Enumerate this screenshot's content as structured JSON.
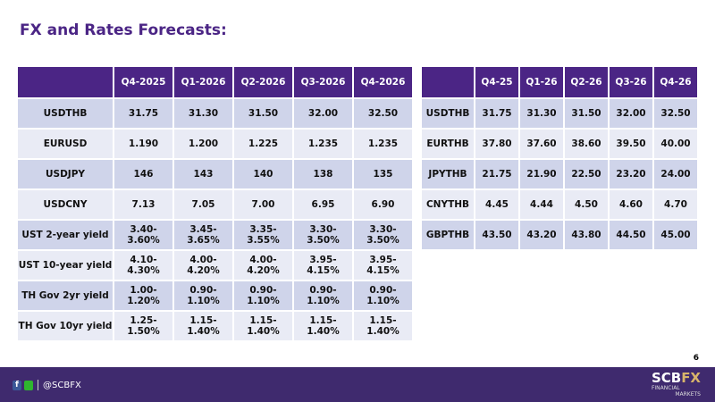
{
  "title": "FX and Rates Forecasts:",
  "left_table": {
    "headers": [
      "",
      "Q4-2025",
      "Q1-2026",
      "Q2-2026",
      "Q3-2026",
      "Q4-2026"
    ],
    "rows": [
      [
        "USDTHB",
        "31.75",
        "31.30",
        "31.50",
        "32.00",
        "32.50"
      ],
      [
        "EURUSD",
        "1.190",
        "1.200",
        "1.225",
        "1.235",
        "1.235"
      ],
      [
        "USDJPY",
        "146",
        "143",
        "140",
        "138",
        "135"
      ],
      [
        "USDCNY",
        "7.13",
        "7.05",
        "7.00",
        "6.95",
        "6.90"
      ],
      [
        "UST 2-year yield",
        "3.40-3.60%",
        "3.45-3.65%",
        "3.35-3.55%",
        "3.30-3.50%",
        "3.30-3.50%"
      ],
      [
        "UST 10-year yield",
        "4.10-4.30%",
        "4.00-4.20%",
        "4.00-4.20%",
        "3.95-4.15%",
        "3.95-4.15%"
      ],
      [
        "TH Gov 2yr yield",
        "1.00-1.20%",
        "0.90-1.10%",
        "0.90-1.10%",
        "0.90-1.10%",
        "0.90-1.10%"
      ],
      [
        "TH Gov 10yr yield",
        "1.25-1.50%",
        "1.15-1.40%",
        "1.15-1.40%",
        "1.15-1.40%",
        "1.15-1.40%"
      ]
    ]
  },
  "right_table": {
    "headers": [
      "",
      "Q4-25",
      "Q1-26",
      "Q2-26",
      "Q3-26",
      "Q4-26"
    ],
    "rows": [
      [
        "USDTHB",
        "31.75",
        "31.30",
        "31.50",
        "32.00",
        "32.50"
      ],
      [
        "EURTHB",
        "37.80",
        "37.60",
        "38.60",
        "39.50",
        "40.00"
      ],
      [
        "JPYTHB",
        "21.75",
        "21.90",
        "22.50",
        "23.20",
        "24.00"
      ],
      [
        "CNYTHB",
        "4.45",
        "4.44",
        "4.50",
        "4.60",
        "4.70"
      ],
      [
        "GBPTHB",
        "43.50",
        "43.20",
        "43.80",
        "44.50",
        "45.00"
      ]
    ]
  },
  "page_number": "6",
  "footer": {
    "handle": "@SCBFX",
    "facebook_glyph": "f",
    "logo_main": "SCB",
    "logo_fx": "FX",
    "logo_line1": "FINANCIAL",
    "logo_line2": "MARKETS"
  },
  "colors": {
    "brand": "#4b2585",
    "footer": "#3f2a6e"
  }
}
